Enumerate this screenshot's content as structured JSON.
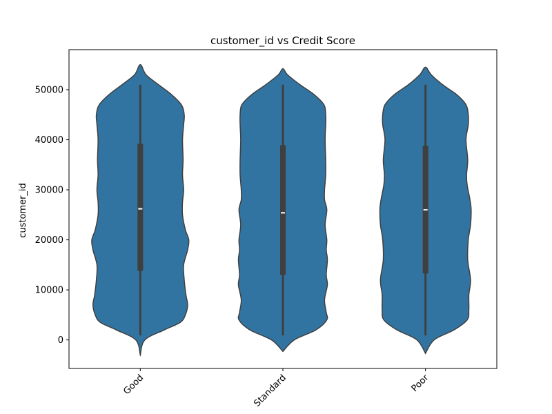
{
  "chart_data": {
    "type": "violin",
    "title": "customer_id vs Credit Score",
    "xlabel": "",
    "ylabel": "customer_id",
    "categories": [
      "Good",
      "Standard",
      "Poor"
    ],
    "ylim": [
      -5700,
      58000
    ],
    "yticks": [
      0,
      10000,
      20000,
      30000,
      40000,
      50000
    ],
    "grid": false,
    "color": "#3274a1",
    "edge_color": "#3f3f3f",
    "box_color": "#3f3f3f",
    "median_color": "#ffffff",
    "violins": [
      {
        "category": "Good",
        "min": 900,
        "q1": 13800,
        "median": 26200,
        "q3": 39200,
        "max": 51000,
        "extent": [
          -3000,
          55000
        ],
        "profile": [
          [
            -3000,
            0.0
          ],
          [
            0,
            0.08
          ],
          [
            2000,
            0.42
          ],
          [
            3500,
            0.7
          ],
          [
            5000,
            0.79
          ],
          [
            7000,
            0.83
          ],
          [
            9000,
            0.8
          ],
          [
            12000,
            0.77
          ],
          [
            15000,
            0.76
          ],
          [
            18000,
            0.83
          ],
          [
            20000,
            0.85
          ],
          [
            22000,
            0.79
          ],
          [
            25000,
            0.74
          ],
          [
            27500,
            0.74
          ],
          [
            30000,
            0.76
          ],
          [
            33000,
            0.74
          ],
          [
            36000,
            0.75
          ],
          [
            40000,
            0.74
          ],
          [
            43000,
            0.76
          ],
          [
            45000,
            0.77
          ],
          [
            47000,
            0.72
          ],
          [
            49000,
            0.55
          ],
          [
            51000,
            0.32
          ],
          [
            53000,
            0.1
          ],
          [
            55000,
            0.0
          ]
        ]
      },
      {
        "category": "Standard",
        "min": 900,
        "q1": 13000,
        "median": 25400,
        "q3": 38900,
        "max": 51000,
        "extent": [
          -2300,
          54200
        ],
        "profile": [
          [
            -2300,
            0.0
          ],
          [
            0,
            0.2
          ],
          [
            2000,
            0.58
          ],
          [
            4000,
            0.77
          ],
          [
            5500,
            0.76
          ],
          [
            8000,
            0.73
          ],
          [
            11000,
            0.78
          ],
          [
            13000,
            0.76
          ],
          [
            16000,
            0.78
          ],
          [
            18000,
            0.76
          ],
          [
            20000,
            0.77
          ],
          [
            23000,
            0.74
          ],
          [
            26000,
            0.77
          ],
          [
            28000,
            0.73
          ],
          [
            30000,
            0.73
          ],
          [
            33000,
            0.75
          ],
          [
            36000,
            0.75
          ],
          [
            40000,
            0.74
          ],
          [
            43000,
            0.75
          ],
          [
            45000,
            0.75
          ],
          [
            47000,
            0.72
          ],
          [
            49000,
            0.55
          ],
          [
            51000,
            0.3
          ],
          [
            53000,
            0.08
          ],
          [
            54200,
            0.0
          ]
        ]
      },
      {
        "category": "Poor",
        "min": 900,
        "q1": 13300,
        "median": 26000,
        "q3": 38800,
        "max": 51000,
        "extent": [
          -2700,
          54500
        ],
        "profile": [
          [
            -2700,
            0.0
          ],
          [
            0,
            0.15
          ],
          [
            2000,
            0.5
          ],
          [
            4000,
            0.73
          ],
          [
            6000,
            0.76
          ],
          [
            9000,
            0.76
          ],
          [
            12000,
            0.79
          ],
          [
            16000,
            0.74
          ],
          [
            20000,
            0.75
          ],
          [
            23000,
            0.79
          ],
          [
            26000,
            0.8
          ],
          [
            28000,
            0.78
          ],
          [
            31000,
            0.73
          ],
          [
            33000,
            0.72
          ],
          [
            36000,
            0.74
          ],
          [
            40000,
            0.71
          ],
          [
            43000,
            0.75
          ],
          [
            45000,
            0.75
          ],
          [
            47000,
            0.71
          ],
          [
            49000,
            0.55
          ],
          [
            51000,
            0.3
          ],
          [
            53000,
            0.1
          ],
          [
            54500,
            0.0
          ]
        ]
      }
    ]
  }
}
